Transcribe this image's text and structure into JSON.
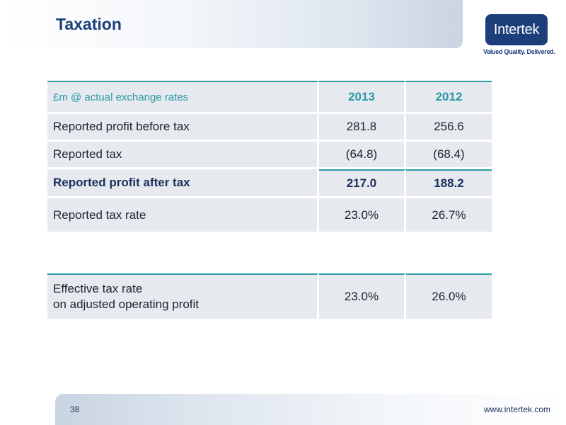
{
  "header": {
    "title": "Taxation"
  },
  "logo": {
    "text": "Intertek",
    "tagline": "Valued Quality. Delivered."
  },
  "table": {
    "headers": [
      "£m @ actual exchange rates",
      "2013",
      "2012"
    ],
    "rows": [
      [
        "Reported profit before tax",
        "281.8",
        "256.6"
      ],
      [
        "Reported tax",
        "(64.8)",
        "(68.4)"
      ],
      [
        "Reported profit after tax",
        "217.0",
        "188.2"
      ],
      [
        "Reported tax rate",
        "23.0%",
        "26.7%"
      ]
    ]
  },
  "effective": {
    "label_line1": "Effective tax rate",
    "label_line2": "on adjusted operating profit",
    "v2013": "23.0%",
    "v2012": "26.0%"
  },
  "footer": {
    "page_number": "38",
    "url": "www.intertek.com"
  }
}
